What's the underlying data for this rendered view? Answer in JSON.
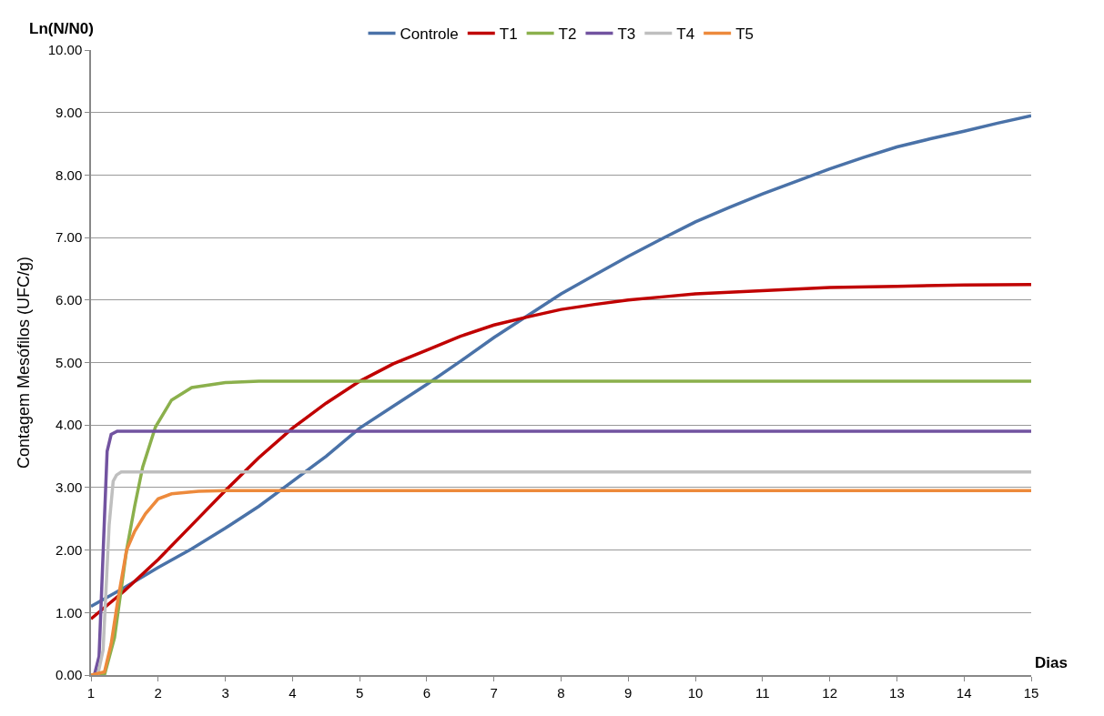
{
  "chart_data": {
    "type": "line",
    "ylabel": "Contagem Mesófilos (UFC/g)",
    "annotations": [
      "Ln(N/N0)",
      "Dias"
    ],
    "series": [
      {
        "name": "Controle",
        "color": "#4a72a8",
        "x": [
          1,
          1.5,
          2,
          2.5,
          3,
          3.5,
          4,
          4.5,
          5,
          5.5,
          6,
          6.5,
          7,
          7.5,
          8,
          8.5,
          9,
          9.5,
          10,
          10.5,
          11,
          11.5,
          12,
          12.5,
          13,
          13.5,
          14,
          14.5,
          15
        ],
        "values": [
          1.1,
          1.4,
          1.72,
          2.02,
          2.35,
          2.7,
          3.1,
          3.5,
          3.95,
          4.3,
          4.65,
          5.02,
          5.4,
          5.75,
          6.1,
          6.4,
          6.7,
          6.98,
          7.25,
          7.48,
          7.7,
          7.9,
          8.1,
          8.28,
          8.45,
          8.58,
          8.7,
          8.83,
          8.95
        ]
      },
      {
        "name": "T1",
        "color": "#c00000",
        "x": [
          1,
          1.5,
          2,
          2.5,
          3,
          3.5,
          4,
          4.5,
          5,
          5.5,
          6,
          6.5,
          7,
          7.5,
          8,
          8.5,
          9,
          9.5,
          10,
          11,
          12,
          13,
          14,
          15
        ],
        "values": [
          0.9,
          1.35,
          1.85,
          2.4,
          2.95,
          3.48,
          3.95,
          4.35,
          4.7,
          4.98,
          5.2,
          5.42,
          5.6,
          5.73,
          5.85,
          5.93,
          6.0,
          6.05,
          6.1,
          6.15,
          6.2,
          6.22,
          6.24,
          6.25
        ]
      },
      {
        "name": "T2",
        "color": "#8bb04c",
        "x": [
          1,
          1.2,
          1.35,
          1.53,
          1.65,
          1.77,
          1.96,
          2.2,
          2.5,
          3.0,
          3.5,
          15
        ],
        "values": [
          0,
          0,
          0.6,
          2.0,
          2.7,
          3.33,
          3.97,
          4.4,
          4.6,
          4.68,
          4.7,
          4.7
        ]
      },
      {
        "name": "T3",
        "color": "#7253a0",
        "x": [
          1.05,
          1.12,
          1.2,
          1.24,
          1.3,
          1.39,
          1.6,
          15
        ],
        "values": [
          0,
          0.3,
          2.5,
          3.58,
          3.85,
          3.9,
          3.9,
          3.9
        ]
      },
      {
        "name": "T4",
        "color": "#bfbfbf",
        "x": [
          1.1,
          1.18,
          1.27,
          1.33,
          1.38,
          1.45,
          1.6,
          15
        ],
        "values": [
          0,
          0.4,
          2.4,
          3.1,
          3.2,
          3.25,
          3.25,
          3.25
        ]
      },
      {
        "name": "T5",
        "color": "#ed8a3c",
        "x": [
          1,
          1.2,
          1.3,
          1.4,
          1.53,
          1.65,
          1.81,
          2.0,
          2.2,
          2.6,
          3.0,
          15
        ],
        "values": [
          0,
          0.05,
          0.5,
          1.2,
          2.0,
          2.3,
          2.58,
          2.82,
          2.9,
          2.94,
          2.95,
          2.95
        ]
      }
    ],
    "xlim": [
      1,
      15
    ],
    "xticks": [
      1,
      2,
      3,
      4,
      5,
      6,
      7,
      8,
      9,
      10,
      11,
      12,
      13,
      14,
      15
    ],
    "ylim": [
      0,
      10
    ],
    "yticks": [
      {
        "value": 0,
        "label": "0.00"
      },
      {
        "value": 1,
        "label": "1.00"
      },
      {
        "value": 2,
        "label": "2.00"
      },
      {
        "value": 3,
        "label": "3.00"
      },
      {
        "value": 4,
        "label": "4.00"
      },
      {
        "value": 5,
        "label": "5.00"
      },
      {
        "value": 6,
        "label": "6.00"
      },
      {
        "value": 7,
        "label": "7.00"
      },
      {
        "value": 8,
        "label": "8.00"
      },
      {
        "value": 9,
        "label": "9.00"
      },
      {
        "value": 10,
        "label": "10.00"
      }
    ],
    "grid": "y",
    "legend": "top",
    "marker": "none",
    "line_style": "solid"
  }
}
